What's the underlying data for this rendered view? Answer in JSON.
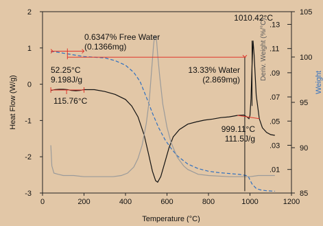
{
  "chart_data": {
    "type": "line",
    "title": "",
    "xlabel": "Temperature (°C)",
    "ylabel_left": "Heat Flow (W/g)",
    "ylabel_right": "Weight",
    "ylabel_deriv": "Deriv. Weight (%/°C)",
    "xlim": [
      0,
      1200
    ],
    "ylim_left": [
      -3,
      2
    ],
    "ylim_right": [
      85,
      105
    ],
    "deriv_scale": {
      "units_at": [
        [
          0.13,
          103.6
        ],
        [
          0.01,
          87.6
        ]
      ]
    },
    "x_ticks": [
      0,
      200,
      400,
      600,
      800,
      1000,
      1200
    ],
    "y_left_ticks": [
      -3,
      -2,
      -1,
      0,
      1,
      2
    ],
    "y_right_ticks": [
      85,
      90,
      95,
      100,
      105
    ],
    "deriv_ticks": [
      ".13",
      ".11",
      ".09",
      ".07",
      ".05",
      ".03",
      ".01"
    ],
    "grid": false,
    "colors": {
      "background": "#e2c7a7",
      "heat_flow": "#111111",
      "weight": "#2e6fc0",
      "derivative": "#9a9a9a",
      "annotation": "#e0352b"
    },
    "series": [
      {
        "key": "heat_flow",
        "axis": "left",
        "style": "solid",
        "x": [
          40,
          60,
          80,
          100,
          120,
          140,
          160,
          180,
          200,
          250,
          300,
          350,
          400,
          430,
          460,
          490,
          510,
          530,
          545,
          555,
          570,
          590,
          610,
          630,
          660,
          700,
          740,
          780,
          820,
          860,
          900,
          940,
          970,
          985,
          995,
          1000,
          1005,
          1010,
          1015,
          1020,
          1030,
          1045,
          1060,
          1080,
          1100,
          1120
        ],
        "y": [
          -0.17,
          -0.15,
          -0.14,
          -0.14,
          -0.15,
          -0.17,
          -0.18,
          -0.17,
          -0.15,
          -0.15,
          -0.2,
          -0.28,
          -0.42,
          -0.6,
          -0.9,
          -1.4,
          -1.9,
          -2.4,
          -2.66,
          -2.7,
          -2.55,
          -2.15,
          -1.75,
          -1.45,
          -1.25,
          -1.1,
          -1.04,
          -0.99,
          -0.96,
          -0.92,
          -0.9,
          -0.86,
          -0.85,
          -0.9,
          -0.95,
          -0.86,
          -0.4,
          0.5,
          1.2,
          0.8,
          -0.3,
          -0.95,
          -1.2,
          -1.33,
          -1.39,
          -1.41
        ]
      },
      {
        "key": "weight",
        "axis": "right",
        "style": "dashed",
        "x": [
          40,
          80,
          120,
          160,
          200,
          250,
          300,
          350,
          400,
          440,
          470,
          500,
          530,
          560,
          590,
          620,
          650,
          700,
          750,
          800,
          850,
          900,
          950,
          990,
          1010,
          1030,
          1050,
          1080,
          1120
        ],
        "y": [
          100.64,
          100.5,
          100.35,
          100.2,
          100.05,
          99.98,
          99.9,
          99.6,
          99.1,
          98.3,
          97.3,
          95.6,
          93.8,
          92.2,
          90.9,
          89.9,
          89.1,
          88.2,
          87.7,
          87.4,
          87.25,
          87.15,
          87.05,
          86.9,
          86.0,
          85.5,
          85.35,
          85.25,
          85.2
        ]
      },
      {
        "key": "derivative",
        "axis": "deriv",
        "style": "solid",
        "x": [
          40,
          45,
          55,
          75,
          100,
          150,
          200,
          280,
          340,
          380,
          410,
          440,
          460,
          480,
          500,
          515,
          525,
          535,
          540,
          545,
          550,
          555,
          565,
          580,
          600,
          620,
          650,
          680,
          700,
          750,
          800,
          900,
          1000,
          1040,
          1120
        ],
        "y": [
          0.03,
          0.013,
          0.007,
          0.006,
          0.005,
          0.005,
          0.004,
          0.004,
          0.004,
          0.005,
          0.007,
          0.012,
          0.019,
          0.03,
          0.048,
          0.068,
          0.09,
          0.112,
          0.12,
          0.12,
          0.116,
          0.105,
          0.087,
          0.064,
          0.045,
          0.032,
          0.02,
          0.013,
          0.01,
          0.006,
          0.005,
          0.004,
          0.004,
          0.005,
          0.005
        ]
      }
    ],
    "annotations": [
      {
        "key": "free_water",
        "lines": [
          "0.6347% Free Water",
          "(0.1366mg)"
        ]
      },
      {
        "key": "peak_temp",
        "lines": [
          "1010.42°C"
        ]
      },
      {
        "key": "enthalpy_low",
        "lines": [
          "52.25°C",
          "9.198J/g"
        ]
      },
      {
        "key": "water",
        "lines": [
          "13.33% Water",
          "(2.869mg)"
        ]
      },
      {
        "key": "onset_low",
        "lines": [
          "115.76°C"
        ]
      },
      {
        "key": "enthalpy_high",
        "lines": [
          "999.11°C",
          "111.5J/g"
        ]
      }
    ]
  }
}
